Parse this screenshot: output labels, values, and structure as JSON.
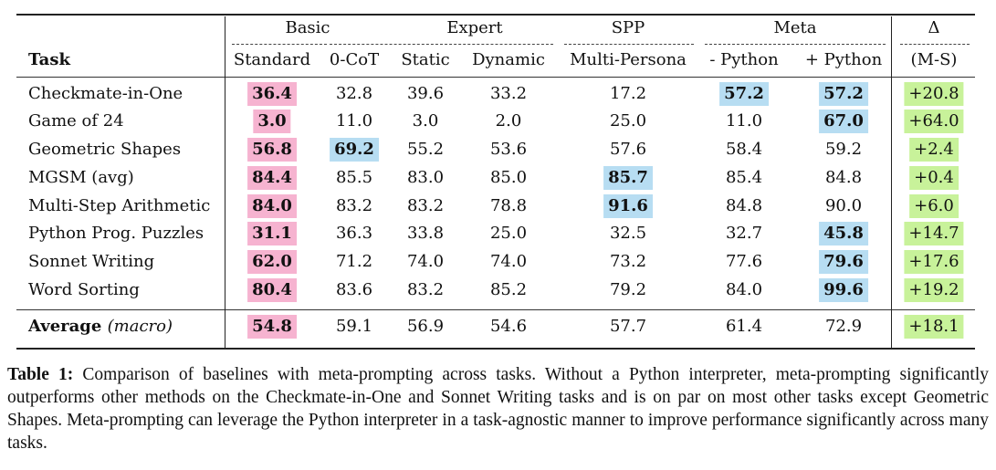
{
  "table": {
    "group_headers": [
      "Basic",
      "Expert",
      "SPP",
      "Meta",
      "Δ"
    ],
    "task_header": "Task",
    "column_headers": [
      "Standard",
      "0-CoT",
      "Static",
      "Dynamic",
      "Multi-Persona",
      "- Python",
      "+ Python",
      "(M-S)"
    ],
    "rows": [
      {
        "task": "Checkmate-in-One",
        "values": [
          "36.4",
          "32.8",
          "39.6",
          "33.2",
          "17.2",
          "57.2",
          "57.2",
          "+20.8"
        ],
        "hl": [
          "pink",
          "",
          "",
          "",
          "",
          "blue",
          "blue",
          "green"
        ]
      },
      {
        "task": "Game of 24",
        "values": [
          "3.0",
          "11.0",
          "3.0",
          "2.0",
          "25.0",
          "11.0",
          "67.0",
          "+64.0"
        ],
        "hl": [
          "pink",
          "",
          "",
          "",
          "",
          "",
          "blue",
          "green"
        ]
      },
      {
        "task": "Geometric Shapes",
        "values": [
          "56.8",
          "69.2",
          "55.2",
          "53.6",
          "57.6",
          "58.4",
          "59.2",
          "+2.4"
        ],
        "hl": [
          "pink",
          "blue",
          "",
          "",
          "",
          "",
          "",
          "green"
        ]
      },
      {
        "task": "MGSM (avg)",
        "values": [
          "84.4",
          "85.5",
          "83.0",
          "85.0",
          "85.7",
          "85.4",
          "84.8",
          "+0.4"
        ],
        "hl": [
          "pink",
          "",
          "",
          "",
          "blue",
          "",
          "",
          "green"
        ]
      },
      {
        "task": "Multi-Step Arithmetic",
        "values": [
          "84.0",
          "83.2",
          "83.2",
          "78.8",
          "91.6",
          "84.8",
          "90.0",
          "+6.0"
        ],
        "hl": [
          "pink",
          "",
          "",
          "",
          "blue",
          "",
          "",
          "green"
        ]
      },
      {
        "task": "Python Prog. Puzzles",
        "values": [
          "31.1",
          "36.3",
          "33.8",
          "25.0",
          "32.5",
          "32.7",
          "45.8",
          "+14.7"
        ],
        "hl": [
          "pink",
          "",
          "",
          "",
          "",
          "",
          "blue",
          "green"
        ]
      },
      {
        "task": "Sonnet Writing",
        "values": [
          "62.0",
          "71.2",
          "74.0",
          "74.0",
          "73.2",
          "77.6",
          "79.6",
          "+17.6"
        ],
        "hl": [
          "pink",
          "",
          "",
          "",
          "",
          "",
          "blue",
          "green"
        ]
      },
      {
        "task": "Word Sorting",
        "values": [
          "80.4",
          "83.6",
          "83.2",
          "85.2",
          "79.2",
          "84.0",
          "99.6",
          "+19.2"
        ],
        "hl": [
          "pink",
          "",
          "",
          "",
          "",
          "",
          "blue",
          "green"
        ]
      }
    ],
    "average": {
      "label": "Average",
      "label_suffix": "(macro)",
      "values": [
        "54.8",
        "59.1",
        "56.9",
        "54.6",
        "57.7",
        "61.4",
        "72.9",
        "+18.1"
      ],
      "hl": [
        "pink",
        "",
        "",
        "",
        "",
        "",
        "",
        "green"
      ]
    }
  },
  "caption": {
    "label": "Table 1:",
    "text": "Comparison of baselines with meta-prompting across tasks. Without a Python interpreter, meta-prompting significantly outperforms other methods on the Checkmate-in-One and Sonnet Writing tasks and is on par on most other tasks except Geometric Shapes. Meta-prompting can leverage the Python interpreter in a task-agnostic manner to improve performance significantly across many tasks."
  },
  "colors": {
    "pink": "#f6b3d0",
    "blue": "#b7ddf2",
    "green": "#c8f29a"
  }
}
